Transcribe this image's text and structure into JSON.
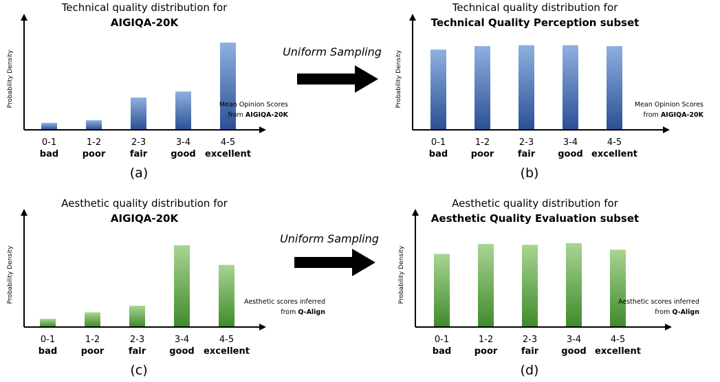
{
  "chart_data": [
    {
      "type": "bar",
      "panel_label": "(a)",
      "title_line1": "Technical quality distribution for",
      "title_line2": "AIGIQA-20K",
      "ylabel": "Probability Density",
      "xlabel_line1": "Mean Opinion Scores",
      "xlabel_prefix": "from ",
      "xlabel_bold": "AIGIQA-20K",
      "tick_labels": [
        "0-1",
        "1-2",
        "2-3",
        "3-4",
        "4-5"
      ],
      "categories": [
        "bad",
        "poor",
        "fair",
        "good",
        "excellent"
      ],
      "values": [
        8,
        11,
        37,
        44,
        100
      ],
      "ylim": [
        0,
        100
      ],
      "color_top": "#8fb0e0",
      "color_bottom": "#2a4f94"
    },
    {
      "type": "bar",
      "panel_label": "(b)",
      "title_line1": "Technical quality distribution for",
      "title_line2": "Technical Quality Perception subset",
      "ylabel": "Probability Density",
      "xlabel_line1": "Mean Opinion Scores",
      "xlabel_prefix": "from ",
      "xlabel_bold": "AIGIQA-20K",
      "tick_labels": [
        "0-1",
        "1-2",
        "2-3",
        "3-4",
        "4-5"
      ],
      "categories": [
        "bad",
        "poor",
        "fair",
        "good",
        "excellent"
      ],
      "values": [
        92,
        96,
        97,
        97,
        96
      ],
      "ylim": [
        0,
        100
      ],
      "color_top": "#8fb0e0",
      "color_bottom": "#2a4f94"
    },
    {
      "type": "bar",
      "panel_label": "(c)",
      "title_line1": "Aesthetic quality distribution for",
      "title_line2": "AIGIQA-20K",
      "ylabel": "Probability Density",
      "xlabel_line1": "Aesthetic scores inferred",
      "xlabel_prefix": "from ",
      "xlabel_bold": "Q-Align",
      "tick_labels": [
        "0-1",
        "1-2",
        "2-3",
        "3-4",
        "4-5"
      ],
      "categories": [
        "bad",
        "poor",
        "fair",
        "good",
        "excellent"
      ],
      "values": [
        10,
        18,
        26,
        100,
        76
      ],
      "ylim": [
        0,
        100
      ],
      "color_top": "#a8d592",
      "color_bottom": "#3f8a2b"
    },
    {
      "type": "bar",
      "panel_label": "(d)",
      "title_line1": "Aesthetic quality distribution for",
      "title_line2": "Aesthetic Quality Evaluation subset",
      "ylabel": "Probability Density",
      "xlabel_line1": "Aesthetic scores inferred",
      "xlabel_prefix": "from ",
      "xlabel_bold": "Q-Align",
      "tick_labels": [
        "0-1",
        "1-2",
        "2-3",
        "3-4",
        "4-5"
      ],
      "categories": [
        "bad",
        "poor",
        "fair",
        "good",
        "excellent"
      ],
      "values": [
        88,
        100,
        99,
        101,
        93
      ],
      "ylim": [
        0,
        105
      ],
      "color_top": "#a8d592",
      "color_bottom": "#3f8a2b"
    }
  ],
  "arrows": [
    {
      "label": "Uniform Sampling"
    },
    {
      "label": "Uniform Sampling"
    }
  ]
}
